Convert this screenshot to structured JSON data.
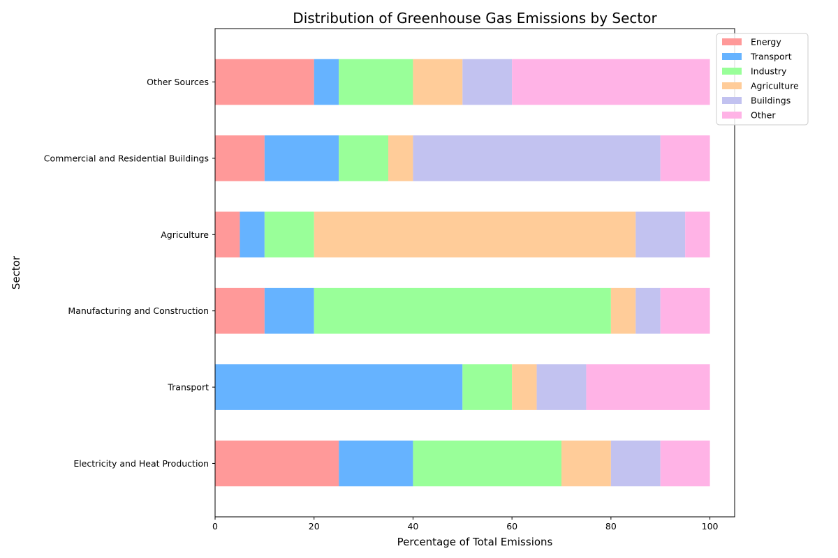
{
  "chart_data": {
    "type": "bar",
    "orientation": "horizontal",
    "stacked": true,
    "title": "Distribution of Greenhouse Gas Emissions by Sector",
    "xlabel": "Percentage of Total Emissions",
    "ylabel": "Sector",
    "xlim": [
      0,
      105
    ],
    "xticks": [
      0,
      20,
      40,
      60,
      80,
      100
    ],
    "grid": false,
    "legend_position": "top-right",
    "categories": [
      "Electricity and Heat Production",
      "Transport",
      "Manufacturing and Construction",
      "Agriculture",
      "Commercial and Residential Buildings",
      "Other Sources"
    ],
    "series": [
      {
        "name": "Energy",
        "color": "#ff9999",
        "values": [
          25,
          0,
          10,
          5,
          10,
          20
        ]
      },
      {
        "name": "Transport",
        "color": "#66b3ff",
        "values": [
          15,
          50,
          10,
          5,
          15,
          5
        ]
      },
      {
        "name": "Industry",
        "color": "#99ff99",
        "values": [
          30,
          10,
          60,
          10,
          10,
          15
        ]
      },
      {
        "name": "Agriculture",
        "color": "#ffcc99",
        "values": [
          10,
          5,
          5,
          65,
          5,
          10
        ]
      },
      {
        "name": "Buildings",
        "color": "#c2c2f0",
        "values": [
          10,
          10,
          5,
          10,
          50,
          10
        ]
      },
      {
        "name": "Other",
        "color": "#ffb3e6",
        "values": [
          10,
          25,
          10,
          5,
          10,
          40
        ]
      }
    ]
  }
}
